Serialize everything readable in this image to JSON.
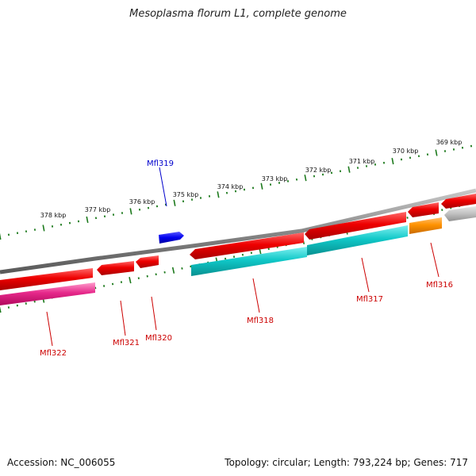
{
  "title": "Mesoplasma florum L1, complete genome",
  "footer": {
    "accession": "Accession: NC_006055",
    "summary": "Topology: circular; Length: 793,224 bp; Genes: 717"
  },
  "colors": {
    "backbone": "#7a7a7a",
    "tick_outer": "#1d7a1d",
    "tick_inner": "#1d7a1d",
    "cds": "#e60000",
    "rna": "#00c0c0",
    "pseudo": "#ff8c00",
    "other": "#b8b8b8",
    "magenta": "#e0197d",
    "blue": "#0000dd",
    "label_red": "#cc0000",
    "label_blue": "#0000cc"
  },
  "scale": {
    "unit": "kbp",
    "labels": [
      "369 kbp",
      "370 kbp",
      "371 kbp",
      "372 kbp",
      "373 kbp",
      "374 kbp",
      "375 kbp",
      "376 kbp",
      "377 kbp",
      "378 kbp"
    ]
  },
  "genes": [
    {
      "label": "Mfl316",
      "color": "orange"
    },
    {
      "label": "Mfl317",
      "color": "cyan"
    },
    {
      "label": "Mfl318",
      "color": "cyan"
    },
    {
      "label": "Mfl319",
      "color": "blue"
    },
    {
      "label": "Mfl320",
      "color": "red"
    },
    {
      "label": "Mfl321",
      "color": "red"
    },
    {
      "label": "Mfl322",
      "color": "magenta"
    }
  ]
}
